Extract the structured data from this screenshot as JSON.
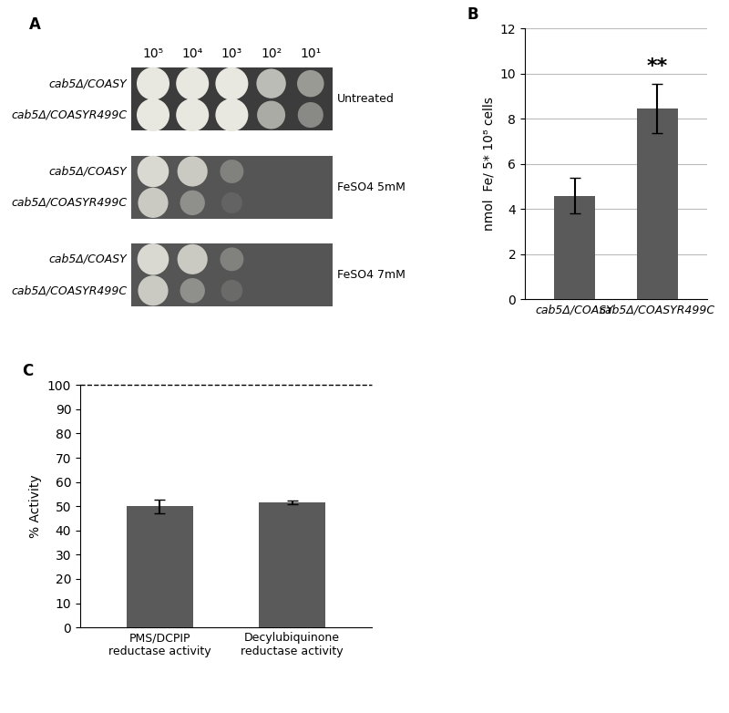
{
  "spot_assay": {
    "panel": "A",
    "dilutions": [
      "10⁵",
      "10⁴",
      "10³",
      "10²",
      "10¹"
    ],
    "plates": [
      {
        "condition": "Untreated",
        "strains": [
          "cab5Δ/COASY",
          "cab5Δ/COASYR499C"
        ],
        "growth": [
          [
            1.0,
            1.0,
            1.0,
            0.75,
            0.55
          ],
          [
            1.0,
            1.0,
            1.0,
            0.65,
            0.45
          ]
        ]
      },
      {
        "condition": "FeSO4 5mM",
        "strains": [
          "cab5Δ/COASY",
          "cab5Δ/COASYR499C"
        ],
        "growth": [
          [
            0.9,
            0.8,
            0.3,
            0.0,
            0.0
          ],
          [
            0.8,
            0.4,
            0.1,
            0.0,
            0.0
          ]
        ]
      },
      {
        "condition": "FeSO4 7mM",
        "strains": [
          "cab5Δ/COASY",
          "cab5Δ/COASYR499C"
        ],
        "growth": [
          [
            0.9,
            0.8,
            0.3,
            0.0,
            0.0
          ],
          [
            0.8,
            0.4,
            0.15,
            0.0,
            0.0
          ]
        ]
      }
    ]
  },
  "chart_data": [
    {
      "panel": "B",
      "type": "bar",
      "categories": [
        "cab5Δ/COASY",
        "cab5Δ/COASYR499C"
      ],
      "values": [
        4.6,
        8.45
      ],
      "errors": [
        0.8,
        1.1
      ],
      "annotations": [
        {
          "category": "cab5Δ/COASYR499C",
          "text": "**"
        }
      ],
      "ylabel": "nmol  Fe/ 5* 10⁸ cells",
      "ylim": [
        0,
        12
      ],
      "yticks": [
        0,
        2,
        4,
        6,
        8,
        10,
        12
      ],
      "color": "#5a5a5a",
      "grid": true
    },
    {
      "panel": "C",
      "type": "bar",
      "categories": [
        "PMS/DCPIP\nreductase activity",
        "Decylubiquinone\nreductase activity"
      ],
      "values": [
        50,
        51.5
      ],
      "errors": [
        2.8,
        0.8
      ],
      "reference_line": 100,
      "ylabel": "% Activity",
      "ylim": [
        0,
        100
      ],
      "yticks": [
        0,
        10,
        20,
        30,
        40,
        50,
        60,
        70,
        80,
        90,
        100
      ],
      "color": "#5a5a5a",
      "grid": false
    }
  ]
}
